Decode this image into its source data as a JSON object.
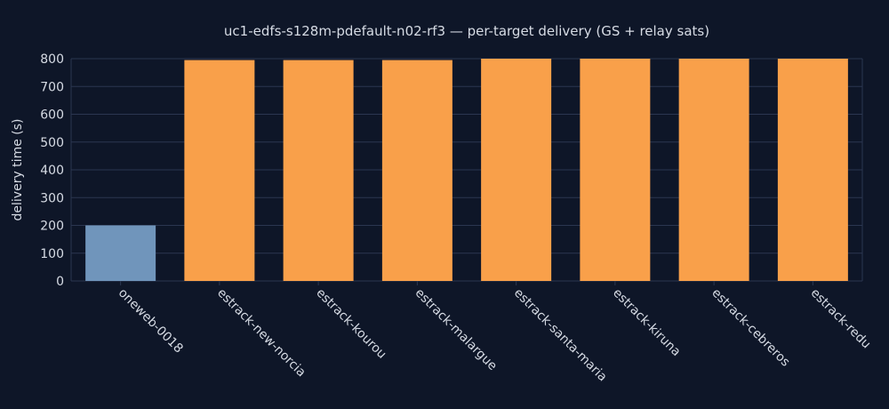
{
  "chart_data": {
    "type": "bar",
    "title": "uc1-edfs-s128m-pdefault-n02-rf3 — per-target delivery (GS + relay sats)",
    "xlabel": "",
    "ylabel": "delivery time (s)",
    "ylim": [
      0,
      800
    ],
    "yticks": [
      0,
      100,
      200,
      300,
      400,
      500,
      600,
      700,
      800
    ],
    "categories": [
      "oneweb-0018",
      "estrack-new-norcia",
      "estrack-kourou",
      "estrack-malargue",
      "estrack-santa-maria",
      "estrack-kiruna",
      "estrack-cebreros",
      "estrack-redu"
    ],
    "values": [
      200,
      795,
      795,
      795,
      800,
      800,
      800,
      800
    ],
    "bar_colors": [
      "#7095bb",
      "#f9a04a",
      "#f9a04a",
      "#f9a04a",
      "#f9a04a",
      "#f9a04a",
      "#f9a04a",
      "#f9a04a"
    ],
    "background_color": "#0e1628",
    "grid": true,
    "legend": "none"
  }
}
